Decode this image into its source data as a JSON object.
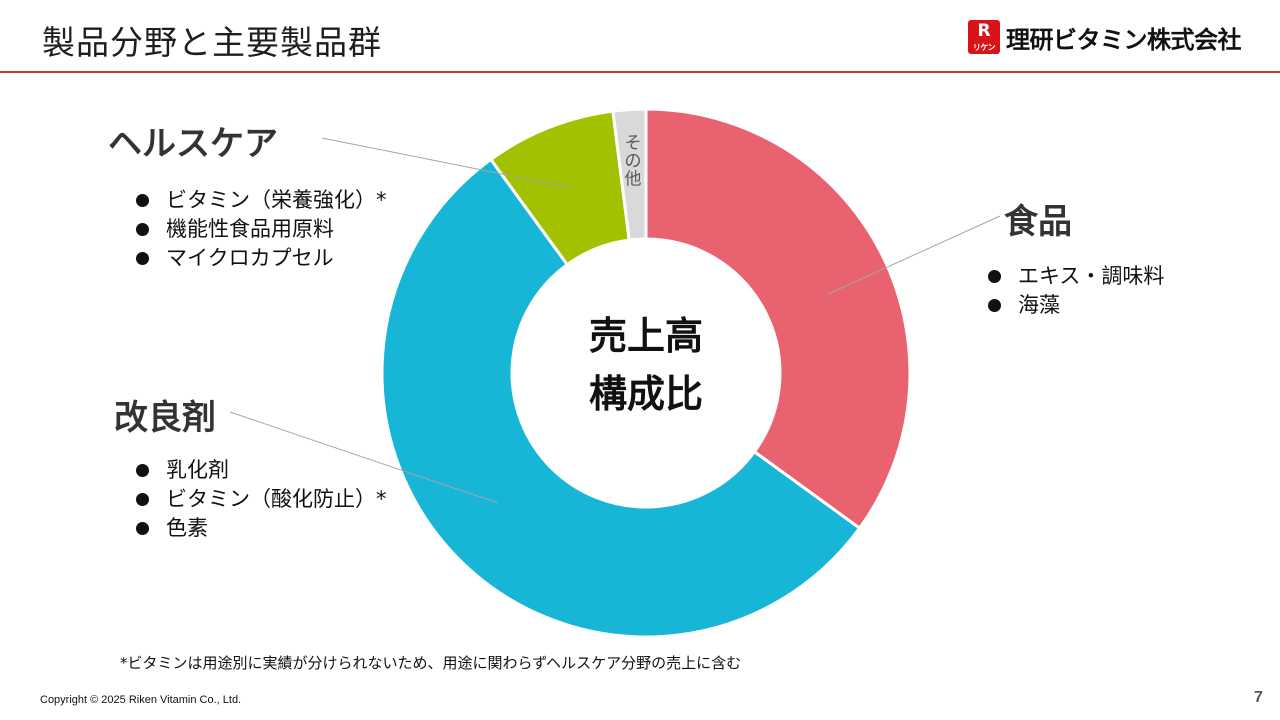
{
  "page": {
    "title": "製品分野と主要製品群",
    "logo_mark": "R",
    "logo_mark_sub": "リケン",
    "logo_text": "理研ビタミン株式会社",
    "footnote": "*ビタミンは用途別に実績が分けられないため、用途に関わらずヘルスケア分野の売上に含む",
    "copyright": "Copyright © 2025 Riken Vitamin Co., Ltd.",
    "page_number": "7",
    "colors": {
      "accent_rule": "#c0392b",
      "logo_red": "#d7141a"
    }
  },
  "categories": {
    "healthcare": {
      "label": "ヘルスケア",
      "items": [
        "ビタミン（栄養強化）*",
        "機能性食品用原料",
        "マイクロカプセル"
      ]
    },
    "food": {
      "label": "食品",
      "items": [
        "エキス・調味料",
        "海藻"
      ]
    },
    "improver": {
      "label": "改良剤",
      "items": [
        "乳化剤",
        "ビタミン（酸化防止）*",
        "色素"
      ]
    }
  },
  "chart_data": {
    "type": "pie",
    "style": "donut",
    "center_label_lines": [
      "売上高",
      "構成比"
    ],
    "slices": [
      {
        "label": "食品",
        "value": 35,
        "color": "#e8626f"
      },
      {
        "label": "改良剤",
        "value": 55,
        "color": "#17b6d6"
      },
      {
        "label": "ヘルスケア",
        "value": 8,
        "color": "#a2c100"
      },
      {
        "label": "その他",
        "value": 2,
        "color": "#d9d9d9"
      }
    ],
    "start": "12 o'clock",
    "direction": "clockwise"
  }
}
